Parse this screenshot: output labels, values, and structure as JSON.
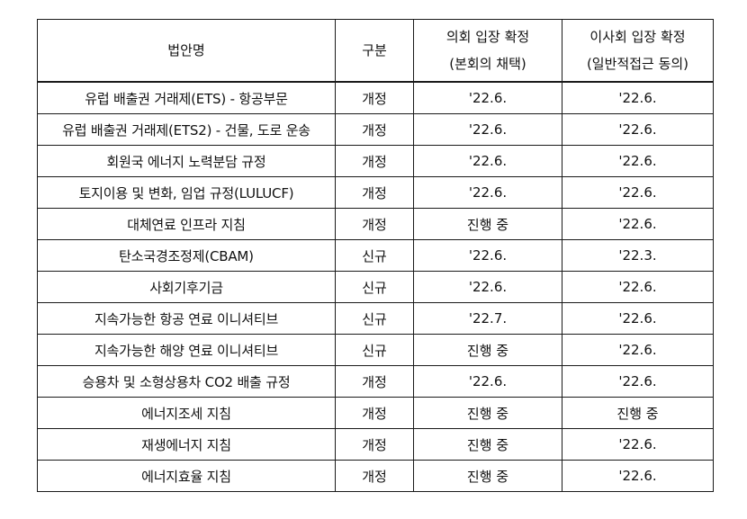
{
  "table": {
    "headers": {
      "name": "법안명",
      "type": "구분",
      "parliament_line1": "의회 입장 확정",
      "parliament_line2": "(본회의 채택)",
      "council_line1": "이사회 입장 확정",
      "council_line2": "(일반적접근 동의)"
    },
    "rows": [
      {
        "name": "유럽 배출권 거래제(ETS) - 항공부문",
        "type": "개정",
        "parliament": "'22.6.",
        "council": "'22.6."
      },
      {
        "name": "유럽 배출권 거래제(ETS2) - 건물, 도로 운송",
        "type": "개정",
        "parliament": "'22.6.",
        "council": "'22.6."
      },
      {
        "name": "회원국 에너지 노력분담 규정",
        "type": "개정",
        "parliament": "'22.6.",
        "council": "'22.6."
      },
      {
        "name": "토지이용 및 변화, 임업 규정(LULUCF)",
        "type": "개정",
        "parliament": "'22.6.",
        "council": "'22.6."
      },
      {
        "name": "대체연료 인프라 지침",
        "type": "개정",
        "parliament": "진행 중",
        "council": "'22.6."
      },
      {
        "name": "탄소국경조정제(CBAM)",
        "type": "신규",
        "parliament": "'22.6.",
        "council": "'22.3."
      },
      {
        "name": "사회기후기금",
        "type": "신규",
        "parliament": "'22.6.",
        "council": "'22.6."
      },
      {
        "name": "지속가능한 항공 연료 이니셔티브",
        "type": "신규",
        "parliament": "'22.7.",
        "council": "'22.6."
      },
      {
        "name": "지속가능한 해양 연료 이니셔티브",
        "type": "신규",
        "parliament": "진행 중",
        "council": "'22.6."
      },
      {
        "name": "승용차 및 소형상용차 CO2 배출 규정",
        "type": "개정",
        "parliament": "'22.6.",
        "council": "'22.6."
      },
      {
        "name": "에너지조세 지침",
        "type": "개정",
        "parliament": "진행 중",
        "council": "진행 중"
      },
      {
        "name": "재생에너지 지침",
        "type": "개정",
        "parliament": "진행 중",
        "council": "'22.6."
      },
      {
        "name": "에너지효율 지침",
        "type": "개정",
        "parliament": "진행 중",
        "council": "'22.6."
      }
    ]
  }
}
